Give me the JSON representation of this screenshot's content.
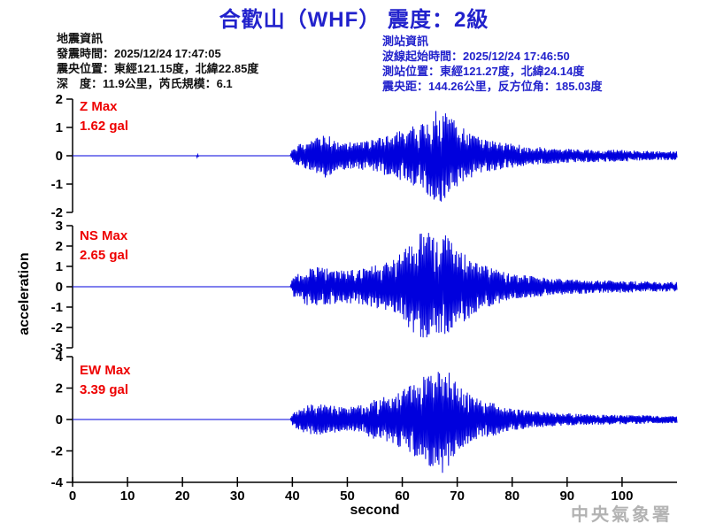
{
  "title": "合歡山（WHF） 震度：2級",
  "earthquake_info": {
    "heading": "地震資訊",
    "origin_time": "發震時間：2025/12/24 17:47:05",
    "epicenter": "震央位置：東經121.15度，北緯22.85度",
    "depth_magnitude": "深　度：11.9公里，芮氏規模：6.1"
  },
  "station_info": {
    "heading": "測站資訊",
    "trace_start_time": "波線起始時間：2025/12/24 17:46:50",
    "station_location": "測站位置：東經121.27度，北緯24.14度",
    "epicentral_distance": "震央距：144.26公里，反方位角：185.03度"
  },
  "watermark": "中央氣象署",
  "colors": {
    "accent_blue": "#2222cc",
    "trace_blue": "#0000dd",
    "label_red": "#ee0000",
    "axis_black": "#000000",
    "watermark_gray": "#b3b3b3"
  },
  "chart_data": {
    "type": "line",
    "xlabel": "second",
    "ylabel": "acceleration",
    "x_range": [
      0,
      110
    ],
    "x_ticks": [
      0,
      10,
      20,
      30,
      40,
      50,
      60,
      70,
      80,
      90,
      100
    ],
    "series": [
      {
        "name": "Z",
        "label": "Z Max",
        "max_label": "1.62 gal",
        "max_gal": 1.62,
        "ylim": [
          -2,
          2
        ],
        "yticks": [
          2,
          1,
          0,
          -1,
          -2
        ],
        "envelope": [
          [
            0,
            0
          ],
          [
            22.5,
            0
          ],
          [
            22.7,
            0.07
          ],
          [
            23.0,
            0
          ],
          [
            39.6,
            0
          ],
          [
            40.2,
            0.35
          ],
          [
            43,
            0.45
          ],
          [
            46,
            0.75
          ],
          [
            48,
            0.5
          ],
          [
            52,
            0.45
          ],
          [
            55,
            0.55
          ],
          [
            58,
            0.75
          ],
          [
            61,
            0.9
          ],
          [
            63,
            1.1
          ],
          [
            65,
            1.35
          ],
          [
            66.5,
            1.62
          ],
          [
            68,
            1.45
          ],
          [
            70,
            1.1
          ],
          [
            72,
            0.8
          ],
          [
            75,
            0.55
          ],
          [
            78,
            0.45
          ],
          [
            82,
            0.35
          ],
          [
            86,
            0.28
          ],
          [
            92,
            0.22
          ],
          [
            100,
            0.2
          ],
          [
            105,
            0.16
          ],
          [
            110,
            0.15
          ]
        ]
      },
      {
        "name": "NS",
        "label": "NS Max",
        "max_label": "2.65 gal",
        "max_gal": 2.65,
        "ylim": [
          -3,
          3
        ],
        "yticks": [
          3,
          2,
          1,
          0,
          -1,
          -2,
          -3
        ],
        "envelope": [
          [
            0,
            0
          ],
          [
            39.6,
            0
          ],
          [
            40.2,
            0.5
          ],
          [
            42,
            0.75
          ],
          [
            44,
            0.9
          ],
          [
            46,
            0.8
          ],
          [
            49,
            0.7
          ],
          [
            52,
            0.75
          ],
          [
            54,
            0.85
          ],
          [
            56,
            1.0
          ],
          [
            58,
            1.1
          ],
          [
            60,
            1.5
          ],
          [
            62,
            2.0
          ],
          [
            63.5,
            2.65
          ],
          [
            65,
            2.3
          ],
          [
            66.5,
            2.0
          ],
          [
            68,
            2.3
          ],
          [
            70,
            1.7
          ],
          [
            72,
            1.4
          ],
          [
            74,
            1.0
          ],
          [
            76,
            0.85
          ],
          [
            79,
            0.65
          ],
          [
            82,
            0.5
          ],
          [
            86,
            0.4
          ],
          [
            90,
            0.32
          ],
          [
            95,
            0.28
          ],
          [
            100,
            0.26
          ],
          [
            105,
            0.22
          ],
          [
            110,
            0.2
          ]
        ]
      },
      {
        "name": "EW",
        "label": "EW Max",
        "max_label": "3.39 gal",
        "max_gal": 3.39,
        "ylim": [
          -4,
          4
        ],
        "yticks": [
          4,
          2,
          0,
          -2,
          -4
        ],
        "envelope": [
          [
            0,
            0
          ],
          [
            39.6,
            0
          ],
          [
            40.2,
            0.5
          ],
          [
            42,
            0.8
          ],
          [
            44,
            0.95
          ],
          [
            47,
            0.85
          ],
          [
            50,
            0.75
          ],
          [
            53,
            0.95
          ],
          [
            55,
            1.2
          ],
          [
            57,
            1.4
          ],
          [
            59,
            1.6
          ],
          [
            61,
            2.0
          ],
          [
            63,
            2.5
          ],
          [
            65,
            2.9
          ],
          [
            67,
            3.39
          ],
          [
            68.5,
            2.9
          ],
          [
            70,
            2.1
          ],
          [
            72,
            1.6
          ],
          [
            74,
            1.25
          ],
          [
            77,
            0.95
          ],
          [
            80,
            0.65
          ],
          [
            84,
            0.5
          ],
          [
            88,
            0.4
          ],
          [
            93,
            0.33
          ],
          [
            98,
            0.3
          ],
          [
            104,
            0.26
          ],
          [
            110,
            0.22
          ]
        ]
      }
    ]
  }
}
